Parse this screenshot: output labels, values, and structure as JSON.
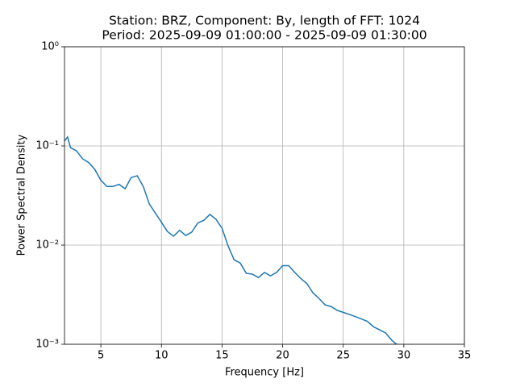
{
  "chart_data": {
    "type": "line",
    "title": "Station: BRZ, Component: By, length of FFT: 1024",
    "subtitle": "Period: 2025-09-09 01:00:00 - 2025-09-09 01:30:00",
    "xlabel": "Frequency [Hz]",
    "ylabel": "Power Spectral Density",
    "x": [
      2.0,
      2.25,
      2.5,
      3.0,
      3.5,
      4.0,
      4.5,
      5.0,
      5.5,
      6.0,
      6.5,
      7.0,
      7.5,
      8.0,
      8.5,
      9.0,
      9.5,
      10.0,
      10.5,
      11.0,
      11.5,
      12.0,
      12.5,
      13.0,
      13.5,
      14.0,
      14.5,
      15.0,
      15.5,
      16.0,
      16.5,
      17.0,
      17.5,
      18.0,
      18.5,
      19.0,
      19.5,
      20.0,
      20.5,
      21.0,
      21.5,
      22.0,
      22.5,
      23.0,
      23.5,
      24.0,
      24.5,
      25.0,
      25.5,
      26.0,
      26.5,
      27.0,
      27.5,
      28.0,
      28.5,
      29.0,
      29.4
    ],
    "series": [
      {
        "name": "PSD",
        "color": "#1f77b4",
        "values": [
          0.112,
          0.123,
          0.096,
          0.089,
          0.074,
          0.068,
          0.058,
          0.045,
          0.039,
          0.039,
          0.041,
          0.037,
          0.048,
          0.05,
          0.039,
          0.026,
          0.021,
          0.017,
          0.0137,
          0.0123,
          0.0141,
          0.0125,
          0.0135,
          0.0167,
          0.0178,
          0.0204,
          0.0182,
          0.0148,
          0.0098,
          0.0071,
          0.0066,
          0.0052,
          0.0051,
          0.0047,
          0.0053,
          0.0049,
          0.0053,
          0.0062,
          0.0062,
          0.0053,
          0.0046,
          0.0041,
          0.0033,
          0.0029,
          0.0025,
          0.0024,
          0.0022,
          0.0021,
          0.002,
          0.0019,
          0.0018,
          0.0017,
          0.0015,
          0.0014,
          0.0013,
          0.0011,
          0.001
        ]
      }
    ],
    "xlim": [
      2,
      35
    ],
    "xticks": [
      5,
      10,
      15,
      20,
      25,
      30,
      35
    ],
    "ylim": [
      0.001,
      1
    ],
    "ylog": true,
    "yticks": [
      {
        "value": 0.001,
        "label": "10⁻³"
      },
      {
        "value": 0.01,
        "label": "10⁻²"
      },
      {
        "value": 0.1,
        "label": "10⁻¹"
      },
      {
        "value": 1,
        "label": "10⁰"
      }
    ],
    "grid": true
  }
}
